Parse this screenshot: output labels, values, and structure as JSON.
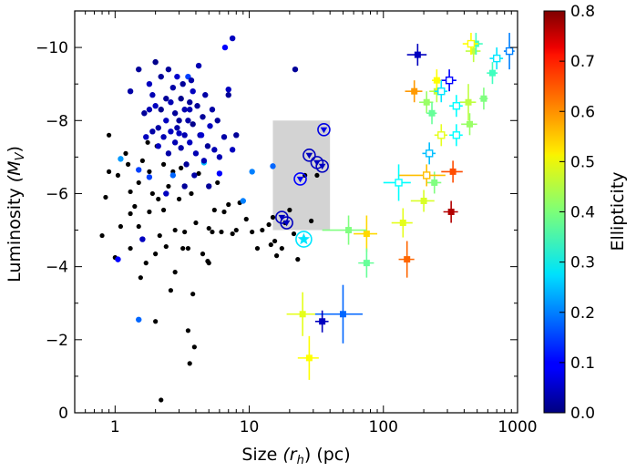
{
  "chart_data": {
    "type": "scatter",
    "xscale": "log",
    "xlabel": "Size $(r_h)$ (pc)",
    "xlabel_parts": [
      "Size ",
      "(r",
      "h",
      ")",
      " (pc)"
    ],
    "ylabel": "Luminosity $(M_V)$",
    "ylabel_parts": [
      "Luminosity ",
      "(M",
      "V",
      ")"
    ],
    "xlim": [
      0.5,
      1000
    ],
    "ylim": [
      0,
      -11
    ],
    "y_inverted": true,
    "xticks": [
      {
        "value": 1,
        "label": "1"
      },
      {
        "value": 10,
        "label": "10"
      },
      {
        "value": 100,
        "label": "100"
      },
      {
        "value": 1000,
        "label": "1000"
      }
    ],
    "yticks": [
      {
        "value": 0,
        "label": "0"
      },
      {
        "value": -2,
        "label": "−2"
      },
      {
        "value": -4,
        "label": "−4"
      },
      {
        "value": -6,
        "label": "−6"
      },
      {
        "value": -8,
        "label": "−8"
      },
      {
        "value": -10,
        "label": "−10"
      }
    ],
    "colorbar": {
      "label": "Ellipticity",
      "range": [
        0.0,
        0.8
      ],
      "ticks": [
        {
          "value": 0.0,
          "label": "0.0"
        },
        {
          "value": 0.1,
          "label": "0.1"
        },
        {
          "value": 0.2,
          "label": "0.2"
        },
        {
          "value": 0.3,
          "label": "0.3"
        },
        {
          "value": 0.4,
          "label": "0.4"
        },
        {
          "value": 0.5,
          "label": "0.5"
        },
        {
          "value": 0.6,
          "label": "0.6"
        },
        {
          "value": 0.7,
          "label": "0.7"
        },
        {
          "value": 0.8,
          "label": "0.8"
        }
      ],
      "colormap": "jet"
    },
    "shaded_region": {
      "x": [
        15,
        40
      ],
      "y": [
        -5.0,
        -8.0
      ],
      "color": "#d3d3d3"
    },
    "series": [
      {
        "name": "clusters (no ellipticity)",
        "marker": "dot",
        "color": "#000000",
        "points": [
          [
            0.8,
            -4.85
          ],
          [
            0.85,
            -5.9
          ],
          [
            0.9,
            -7.6
          ],
          [
            0.9,
            -6.6
          ],
          [
            1.0,
            -4.25
          ],
          [
            1.05,
            -6.5
          ],
          [
            1.1,
            -5.1
          ],
          [
            1.2,
            -7.1
          ],
          [
            1.25,
            -6.8
          ],
          [
            1.3,
            -6.05
          ],
          [
            1.3,
            -5.45
          ],
          [
            1.3,
            -4.5
          ],
          [
            1.4,
            -5.65
          ],
          [
            1.5,
            -6.3
          ],
          [
            1.5,
            -5.1
          ],
          [
            1.55,
            -3.7
          ],
          [
            1.6,
            -6.9
          ],
          [
            1.7,
            -4.1
          ],
          [
            1.75,
            -7.4
          ],
          [
            1.8,
            -6.6
          ],
          [
            1.8,
            -5.5
          ],
          [
            1.9,
            -6.0
          ],
          [
            2.0,
            -2.5
          ],
          [
            2.0,
            -4.35
          ],
          [
            2.05,
            -7.3
          ],
          [
            2.1,
            -5.85
          ],
          [
            2.15,
            -4.85
          ],
          [
            2.2,
            -0.35
          ],
          [
            2.3,
            -5.55
          ],
          [
            2.3,
            -6.8
          ],
          [
            2.4,
            -4.55
          ],
          [
            2.5,
            -6.2
          ],
          [
            2.6,
            -3.35
          ],
          [
            2.7,
            -6.6
          ],
          [
            2.8,
            -3.85
          ],
          [
            2.8,
            -5.0
          ],
          [
            3.0,
            -5.85
          ],
          [
            3.1,
            -6.7
          ],
          [
            3.2,
            -4.5
          ],
          [
            3.3,
            -4.95
          ],
          [
            3.5,
            -4.5
          ],
          [
            3.5,
            -2.25
          ],
          [
            3.6,
            -1.35
          ],
          [
            3.7,
            -6.0
          ],
          [
            3.8,
            -3.25
          ],
          [
            3.9,
            -1.8
          ],
          [
            4.0,
            -5.2
          ],
          [
            4.2,
            -6.55
          ],
          [
            4.5,
            -4.35
          ],
          [
            4.9,
            -4.15
          ],
          [
            5.0,
            -4.1
          ],
          [
            5.0,
            -5.05
          ],
          [
            5.3,
            -4.95
          ],
          [
            5.5,
            -5.55
          ],
          [
            5.8,
            -6.3
          ],
          [
            6.2,
            -4.95
          ],
          [
            6.5,
            -5.5
          ],
          [
            7.0,
            -5.7
          ],
          [
            7.5,
            -4.9
          ],
          [
            8.0,
            -5.0
          ],
          [
            8.5,
            -5.75
          ],
          [
            9.5,
            -5.3
          ],
          [
            10.5,
            -4.95
          ],
          [
            11.5,
            -4.5
          ],
          [
            12.5,
            -5.0
          ],
          [
            14.0,
            -5.15
          ],
          [
            14.5,
            -4.6
          ],
          [
            15.0,
            -5.35
          ],
          [
            15.5,
            -4.7
          ],
          [
            16.0,
            -4.3
          ],
          [
            17.5,
            -4.5
          ],
          [
            18.5,
            -5.2
          ],
          [
            20.0,
            -5.55
          ],
          [
            21.5,
            -4.9
          ],
          [
            23.0,
            -4.2
          ],
          [
            26.0,
            -6.5
          ],
          [
            29.0,
            -5.25
          ],
          [
            32.0,
            -6.5
          ]
        ]
      },
      {
        "name": "clusters (ellipticity)",
        "marker": "dot",
        "points": [
          [
            1.1,
            -6.95,
            0.22
          ],
          [
            1.05,
            -4.2,
            0.1
          ],
          [
            1.5,
            -2.55,
            0.18
          ],
          [
            1.5,
            -6.65,
            0.15
          ],
          [
            1.6,
            -4.75,
            0.05
          ],
          [
            1.7,
            -7.55,
            0.05
          ],
          [
            1.8,
            -6.45,
            0.15
          ],
          [
            2.7,
            -6.5,
            0.18
          ],
          [
            4.6,
            -6.85,
            0.25
          ],
          [
            6.0,
            -6.55,
            0.1
          ],
          [
            9.0,
            -5.8,
            0.2
          ],
          [
            10.5,
            -6.6,
            0.2
          ],
          [
            6.6,
            -10.0,
            0.1
          ],
          [
            7.5,
            -10.25,
            0.05
          ],
          [
            7.0,
            -8.85,
            0.05
          ],
          [
            22.0,
            -9.4,
            0.02
          ],
          [
            15.0,
            -6.75,
            0.18
          ],
          [
            1.3,
            -8.8,
            0.03
          ],
          [
            1.5,
            -9.4,
            0.02
          ],
          [
            1.65,
            -8.2,
            0.02
          ],
          [
            1.8,
            -9.0,
            0.05
          ],
          [
            1.8,
            -8.3,
            0.04
          ],
          [
            1.9,
            -7.7,
            0.03
          ],
          [
            2.0,
            -9.6,
            0.01
          ],
          [
            2.0,
            -8.4,
            0.05
          ],
          [
            2.1,
            -7.8,
            0.03
          ],
          [
            2.1,
            -7.3,
            0.05
          ],
          [
            2.2,
            -9.2,
            0.02
          ],
          [
            2.2,
            -8.3,
            0.01
          ],
          [
            2.3,
            -7.55,
            0.04
          ],
          [
            2.4,
            -8.6,
            0.02
          ],
          [
            2.4,
            -8.0,
            0.05
          ],
          [
            2.5,
            -7.1,
            0.03
          ],
          [
            2.5,
            -9.4,
            0.02
          ],
          [
            2.6,
            -8.5,
            0.04
          ],
          [
            2.6,
            -7.7,
            0.05
          ],
          [
            2.7,
            -8.9,
            0.03
          ],
          [
            2.8,
            -8.2,
            0.02
          ],
          [
            2.8,
            -7.4,
            0.04
          ],
          [
            2.9,
            -9.2,
            0.06
          ],
          [
            3.0,
            -8.0,
            0.02
          ],
          [
            3.0,
            -7.65,
            0.05
          ],
          [
            3.1,
            -8.6,
            0.01
          ],
          [
            3.1,
            -7.25,
            0.03
          ],
          [
            3.2,
            -9.0,
            0.02
          ],
          [
            3.3,
            -8.3,
            0.04
          ],
          [
            3.3,
            -7.6,
            0.04
          ],
          [
            3.4,
            -6.8,
            0.02
          ],
          [
            3.5,
            -9.2,
            0.15
          ],
          [
            3.5,
            -8.0,
            0.03
          ],
          [
            3.6,
            -8.5,
            0.02
          ],
          [
            3.6,
            -7.4,
            0.05
          ],
          [
            3.7,
            -9.1,
            0.03
          ],
          [
            3.8,
            -7.9,
            0.01
          ],
          [
            3.8,
            -8.8,
            0.05
          ],
          [
            3.9,
            -6.5,
            0.03
          ],
          [
            4.0,
            -7.1,
            0.04
          ],
          [
            4.1,
            -8.4,
            0.02
          ],
          [
            4.2,
            -9.5,
            0.04
          ],
          [
            4.3,
            -7.6,
            0.03
          ],
          [
            4.5,
            -8.1,
            0.02
          ],
          [
            4.6,
            -6.9,
            0.04
          ],
          [
            4.7,
            -8.7,
            0.03
          ],
          [
            4.9,
            -7.3,
            0.02
          ],
          [
            5.0,
            -6.2,
            0.02
          ],
          [
            5.1,
            -7.85,
            0.05
          ],
          [
            5.3,
            -8.3,
            0.03
          ],
          [
            5.5,
            -7.2,
            0.04
          ],
          [
            5.8,
            -8.0,
            0.02
          ],
          [
            6.0,
            -7.0,
            0.04
          ],
          [
            6.5,
            -7.55,
            0.03
          ],
          [
            7.0,
            -8.7,
            0.02
          ],
          [
            7.5,
            -7.2,
            0.05
          ],
          [
            8.0,
            -7.6,
            0.02
          ],
          [
            3.6,
            -8.3,
            0.04
          ],
          [
            2.9,
            -7.8,
            0.03
          ],
          [
            1.9,
            -8.7,
            0.04
          ],
          [
            2.4,
            -6.0,
            0.05
          ],
          [
            3.3,
            -6.2,
            0.02
          ],
          [
            4.4,
            -7.6,
            0.06
          ]
        ]
      },
      {
        "name": "circled triangles",
        "marker": "circle-triangle",
        "points": [
          [
            17.5,
            -5.35,
            0.05
          ],
          [
            19.0,
            -5.2,
            0.05
          ],
          [
            24.0,
            -6.4,
            0.1
          ],
          [
            28.0,
            -7.05,
            0.05
          ],
          [
            32.0,
            -6.85,
            0.05
          ],
          [
            35.0,
            -6.75,
            0.05
          ],
          [
            36.0,
            -7.75,
            0.08
          ]
        ]
      },
      {
        "name": "star",
        "marker": "circle-star",
        "points": [
          [
            25.5,
            -4.75,
            0.28
          ]
        ]
      },
      {
        "name": "dwarfs (filled squares)",
        "marker": "square-filled",
        "points": [
          [
            180,
            -9.8,
            0.05,
            30,
            0.3
          ],
          [
            170,
            -8.8,
            0.58,
            25,
            0.3
          ],
          [
            250,
            -8.8,
            0.45,
            30,
            0.3
          ],
          [
            210,
            -8.5,
            0.42,
            25,
            0.3
          ],
          [
            230,
            -8.2,
            0.38,
            20,
            0.3
          ],
          [
            250,
            -9.1,
            0.5,
            20,
            0.3
          ],
          [
            430,
            -8.5,
            0.45,
            60,
            0.5
          ],
          [
            470,
            -9.9,
            0.45,
            60,
            0.3
          ],
          [
            490,
            -10.1,
            0.35,
            60,
            0.3
          ],
          [
            560,
            -8.6,
            0.4,
            40,
            0.3
          ],
          [
            650,
            -9.3,
            0.35,
            60,
            0.3
          ],
          [
            440,
            -7.9,
            0.42,
            60,
            0.3
          ],
          [
            330,
            -6.6,
            0.64,
            60,
            0.3
          ],
          [
            240,
            -6.3,
            0.4,
            30,
            0.3
          ],
          [
            200,
            -5.8,
            0.47,
            40,
            0.3
          ],
          [
            140,
            -5.2,
            0.48,
            25,
            0.4
          ],
          [
            150,
            -4.2,
            0.62,
            20,
            0.5
          ],
          [
            320,
            -5.5,
            0.76,
            40,
            0.3
          ],
          [
            75,
            -4.9,
            0.53,
            15,
            0.5
          ],
          [
            55,
            -5.0,
            0.4,
            20,
            0.4
          ],
          [
            75,
            -4.1,
            0.38,
            10,
            0.4
          ],
          [
            50,
            -2.7,
            0.18,
            20,
            0.8
          ],
          [
            35,
            -2.5,
            0.05,
            4,
            0.3
          ],
          [
            25,
            -2.7,
            0.48,
            6,
            0.6
          ],
          [
            28,
            -1.5,
            0.5,
            5,
            0.6
          ]
        ]
      },
      {
        "name": "dwarfs (open squares)",
        "marker": "square-open",
        "points": [
          [
            310,
            -9.1,
            0.1,
            40,
            0.3
          ],
          [
            270,
            -8.8,
            0.28,
            30,
            0.3
          ],
          [
            350,
            -8.4,
            0.3,
            40,
            0.3
          ],
          [
            220,
            -7.1,
            0.25,
            25,
            0.3
          ],
          [
            350,
            -7.6,
            0.3,
            40,
            0.3
          ],
          [
            270,
            -7.6,
            0.48,
            30,
            0.3
          ],
          [
            450,
            -10.1,
            0.5,
            60,
            0.3
          ],
          [
            700,
            -9.7,
            0.28,
            80,
            0.3
          ],
          [
            870,
            -9.9,
            0.2,
            80,
            0.5
          ],
          [
            210,
            -6.5,
            0.55,
            80,
            0.3
          ],
          [
            130,
            -6.3,
            0.3,
            30,
            0.5
          ]
        ]
      }
    ]
  }
}
